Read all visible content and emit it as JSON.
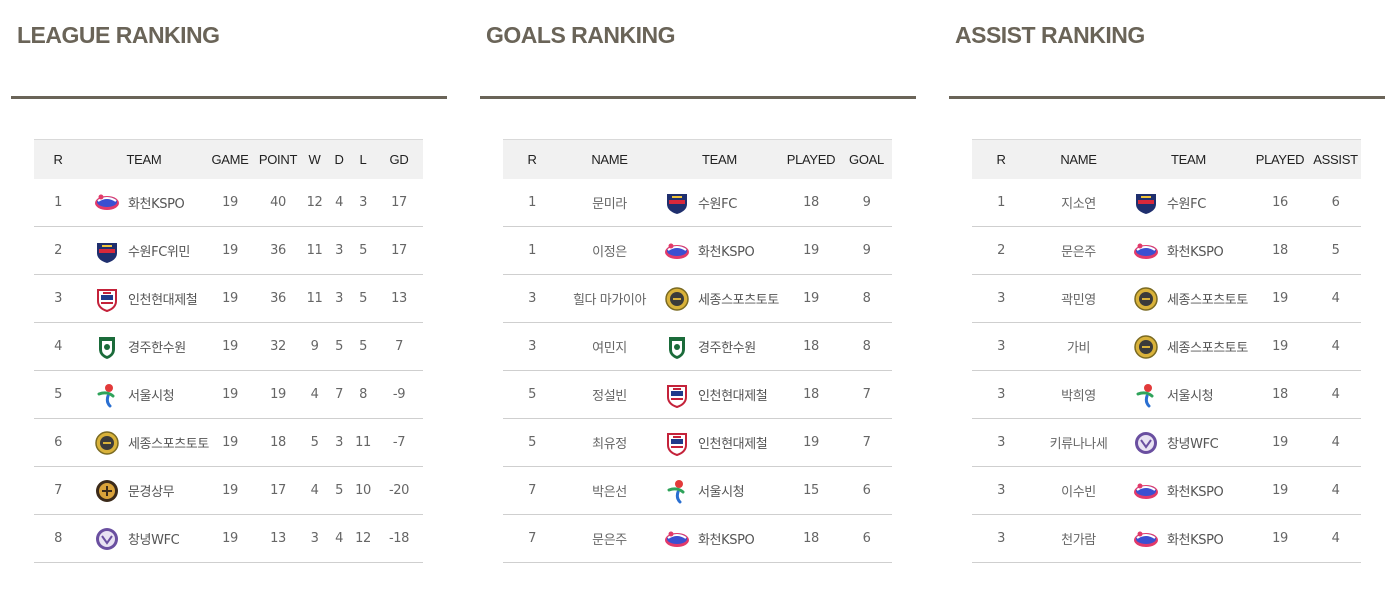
{
  "league": {
    "title": "LEAGUE RANKING",
    "headers": [
      "R",
      "TEAM",
      "GAME",
      "POINT",
      "W",
      "D",
      "L",
      "GD"
    ],
    "rows": [
      {
        "r": "1",
        "team": "화천KSPO",
        "logo": "hwacheon-kspo-logo",
        "game": "19",
        "point": "40",
        "w": "12",
        "d": "4",
        "l": "3",
        "gd": "17"
      },
      {
        "r": "2",
        "team": "수원FC위민",
        "logo": "suwon-fc-logo",
        "game": "19",
        "point": "36",
        "w": "11",
        "d": "3",
        "l": "5",
        "gd": "17"
      },
      {
        "r": "3",
        "team": "인천현대제철",
        "logo": "incheon-hyundai-steel-logo",
        "game": "19",
        "point": "36",
        "w": "11",
        "d": "3",
        "l": "5",
        "gd": "13"
      },
      {
        "r": "4",
        "team": "경주한수원",
        "logo": "gyeongju-khnp-logo",
        "game": "19",
        "point": "32",
        "w": "9",
        "d": "5",
        "l": "5",
        "gd": "7"
      },
      {
        "r": "5",
        "team": "서울시청",
        "logo": "seoul-city-logo",
        "game": "19",
        "point": "19",
        "w": "4",
        "d": "7",
        "l": "8",
        "gd": "-9"
      },
      {
        "r": "6",
        "team": "세종스포츠토토",
        "logo": "sejong-sportstoto-logo",
        "game": "19",
        "point": "18",
        "w": "5",
        "d": "3",
        "l": "11",
        "gd": "-7"
      },
      {
        "r": "7",
        "team": "문경상무",
        "logo": "mungyeong-sangmu-logo",
        "game": "19",
        "point": "17",
        "w": "4",
        "d": "5",
        "l": "10",
        "gd": "-20"
      },
      {
        "r": "8",
        "team": "창녕WFC",
        "logo": "changnyeong-wfc-logo",
        "game": "19",
        "point": "13",
        "w": "3",
        "d": "4",
        "l": "12",
        "gd": "-18"
      }
    ]
  },
  "goals": {
    "title": "GOALS RANKING",
    "headers": [
      "R",
      "NAME",
      "TEAM",
      "PLAYED",
      "GOAL"
    ],
    "rows": [
      {
        "r": "1",
        "name": "문미라",
        "team": "수원FC",
        "logo": "suwon-fc-logo",
        "played": "18",
        "value": "9"
      },
      {
        "r": "1",
        "name": "이정은",
        "team": "화천KSPO",
        "logo": "hwacheon-kspo-logo",
        "played": "19",
        "value": "9"
      },
      {
        "r": "3",
        "name": "힐다 마가이아",
        "team": "세종스포츠토토",
        "logo": "sejong-sportstoto-logo",
        "played": "19",
        "value": "8"
      },
      {
        "r": "3",
        "name": "여민지",
        "team": "경주한수원",
        "logo": "gyeongju-khnp-logo",
        "played": "18",
        "value": "8"
      },
      {
        "r": "5",
        "name": "정설빈",
        "team": "인천현대제철",
        "logo": "incheon-hyundai-steel-logo",
        "played": "18",
        "value": "7"
      },
      {
        "r": "5",
        "name": "최유정",
        "team": "인천현대제철",
        "logo": "incheon-hyundai-steel-logo",
        "played": "19",
        "value": "7"
      },
      {
        "r": "7",
        "name": "박은선",
        "team": "서울시청",
        "logo": "seoul-city-logo",
        "played": "15",
        "value": "6"
      },
      {
        "r": "7",
        "name": "문은주",
        "team": "화천KSPO",
        "logo": "hwacheon-kspo-logo",
        "played": "18",
        "value": "6"
      }
    ]
  },
  "assists": {
    "title": "ASSIST RANKING",
    "headers": [
      "R",
      "NAME",
      "TEAM",
      "PLAYED",
      "ASSIST"
    ],
    "rows": [
      {
        "r": "1",
        "name": "지소연",
        "team": "수원FC",
        "logo": "suwon-fc-logo",
        "played": "16",
        "value": "6"
      },
      {
        "r": "2",
        "name": "문은주",
        "team": "화천KSPO",
        "logo": "hwacheon-kspo-logo",
        "played": "18",
        "value": "5"
      },
      {
        "r": "3",
        "name": "곽민영",
        "team": "세종스포츠토토",
        "logo": "sejong-sportstoto-logo",
        "played": "19",
        "value": "4"
      },
      {
        "r": "3",
        "name": "가비",
        "team": "세종스포츠토토",
        "logo": "sejong-sportstoto-logo",
        "played": "19",
        "value": "4"
      },
      {
        "r": "3",
        "name": "박희영",
        "team": "서울시청",
        "logo": "seoul-city-logo",
        "played": "18",
        "value": "4"
      },
      {
        "r": "3",
        "name": "키류나나세",
        "team": "창녕WFC",
        "logo": "changnyeong-wfc-logo",
        "played": "19",
        "value": "4"
      },
      {
        "r": "3",
        "name": "이수빈",
        "team": "화천KSPO",
        "logo": "hwacheon-kspo-logo",
        "played": "19",
        "value": "4"
      },
      {
        "r": "3",
        "name": "천가람",
        "team": "화천KSPO",
        "logo": "hwacheon-kspo-logo",
        "played": "19",
        "value": "4"
      }
    ]
  }
}
